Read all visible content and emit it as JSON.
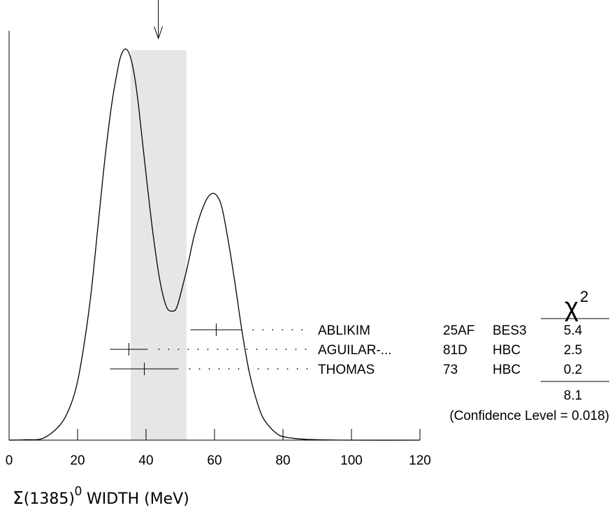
{
  "chart_data": {
    "type": "line",
    "xlabel": {
      "symbol": "Σ",
      "mass": "(1385)",
      "superscript": "0",
      "rest": " WIDTH (MeV)"
    },
    "xlim": [
      0,
      120
    ],
    "xticks": [
      "0",
      "20",
      "40",
      "60",
      "80",
      "100",
      "120"
    ],
    "weighted_average": 43.6,
    "error_band": [
      35.5,
      51.8
    ],
    "ideogram": {
      "x": [
        0,
        5,
        10,
        15,
        18,
        20,
        22,
        24,
        26,
        28,
        30,
        32,
        33,
        34,
        35,
        36,
        37,
        38,
        40,
        42,
        44,
        46,
        48,
        49,
        50,
        52,
        54,
        56,
        58,
        60,
        62,
        64,
        66,
        68,
        70,
        72,
        74,
        76,
        78,
        80,
        85,
        90,
        100,
        120
      ],
      "y": [
        0,
        0.001,
        0.005,
        0.04,
        0.09,
        0.15,
        0.25,
        0.38,
        0.55,
        0.72,
        0.86,
        0.96,
        0.99,
        1.0,
        0.99,
        0.96,
        0.91,
        0.84,
        0.68,
        0.53,
        0.41,
        0.34,
        0.33,
        0.34,
        0.37,
        0.44,
        0.52,
        0.58,
        0.62,
        0.63,
        0.6,
        0.51,
        0.4,
        0.28,
        0.18,
        0.11,
        0.06,
        0.035,
        0.018,
        0.009,
        0.003,
        0.001,
        0,
        0
      ]
    },
    "measurements": [
      {
        "label": "ABLIKIM",
        "year": "25AF",
        "experiment": "BES3",
        "chi2": "5.4",
        "value": 60.5,
        "low": 53.0,
        "high": 68.0
      },
      {
        "label": "AGUILAR-...",
        "year": "81D",
        "experiment": "HBC",
        "chi2": "2.5",
        "value": 35.0,
        "low": 29.5,
        "high": 40.5
      },
      {
        "label": "THOMAS",
        "year": "73",
        "experiment": "HBC",
        "chi2": "0.2",
        "value": 39.5,
        "low": 29.5,
        "high": 49.5
      }
    ],
    "chi2_header": {
      "symbol": "χ",
      "superscript": "2"
    },
    "chi2_total": "8.1",
    "confidence_level": "(Confidence Level = 0.018)"
  }
}
